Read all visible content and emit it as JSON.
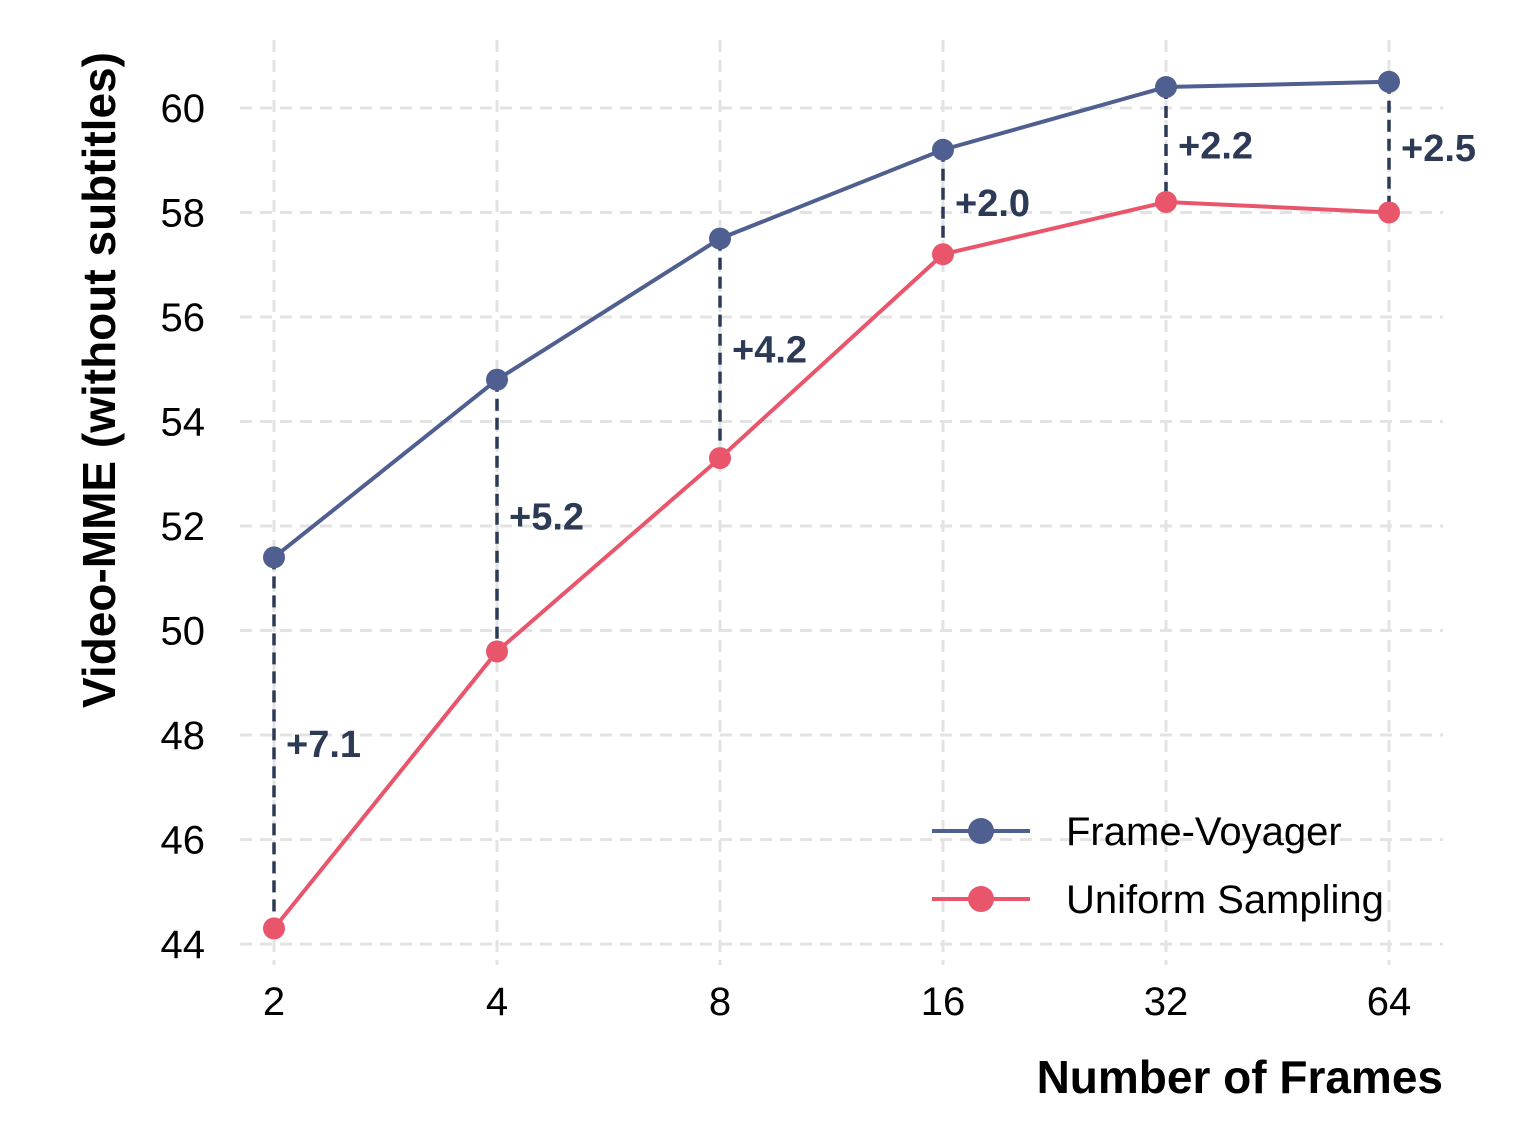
{
  "chart_data": {
    "type": "line",
    "xlabel": "Number of Frames",
    "ylabel": "Video-MME (without subtitles)",
    "categories": [
      "2",
      "4",
      "8",
      "16",
      "32",
      "64"
    ],
    "ylim": [
      43.6,
      61.3
    ],
    "yticks": [
      44,
      46,
      48,
      50,
      52,
      54,
      56,
      58,
      60
    ],
    "grid": true,
    "legend_position": "bottom-right",
    "series": [
      {
        "name": "Frame-Voyager",
        "color": "#4f5f8f",
        "values": [
          51.4,
          54.8,
          57.5,
          59.2,
          60.4,
          60.5
        ]
      },
      {
        "name": "Uniform Sampling",
        "color": "#e9566c",
        "values": [
          44.3,
          49.6,
          53.3,
          57.2,
          58.2,
          58.0
        ]
      }
    ],
    "annotations": [
      "+7.1",
      "+5.2",
      "+4.2",
      "+2.0",
      "+2.2",
      "+2.5"
    ],
    "annotation_color": "#2c3a55"
  }
}
